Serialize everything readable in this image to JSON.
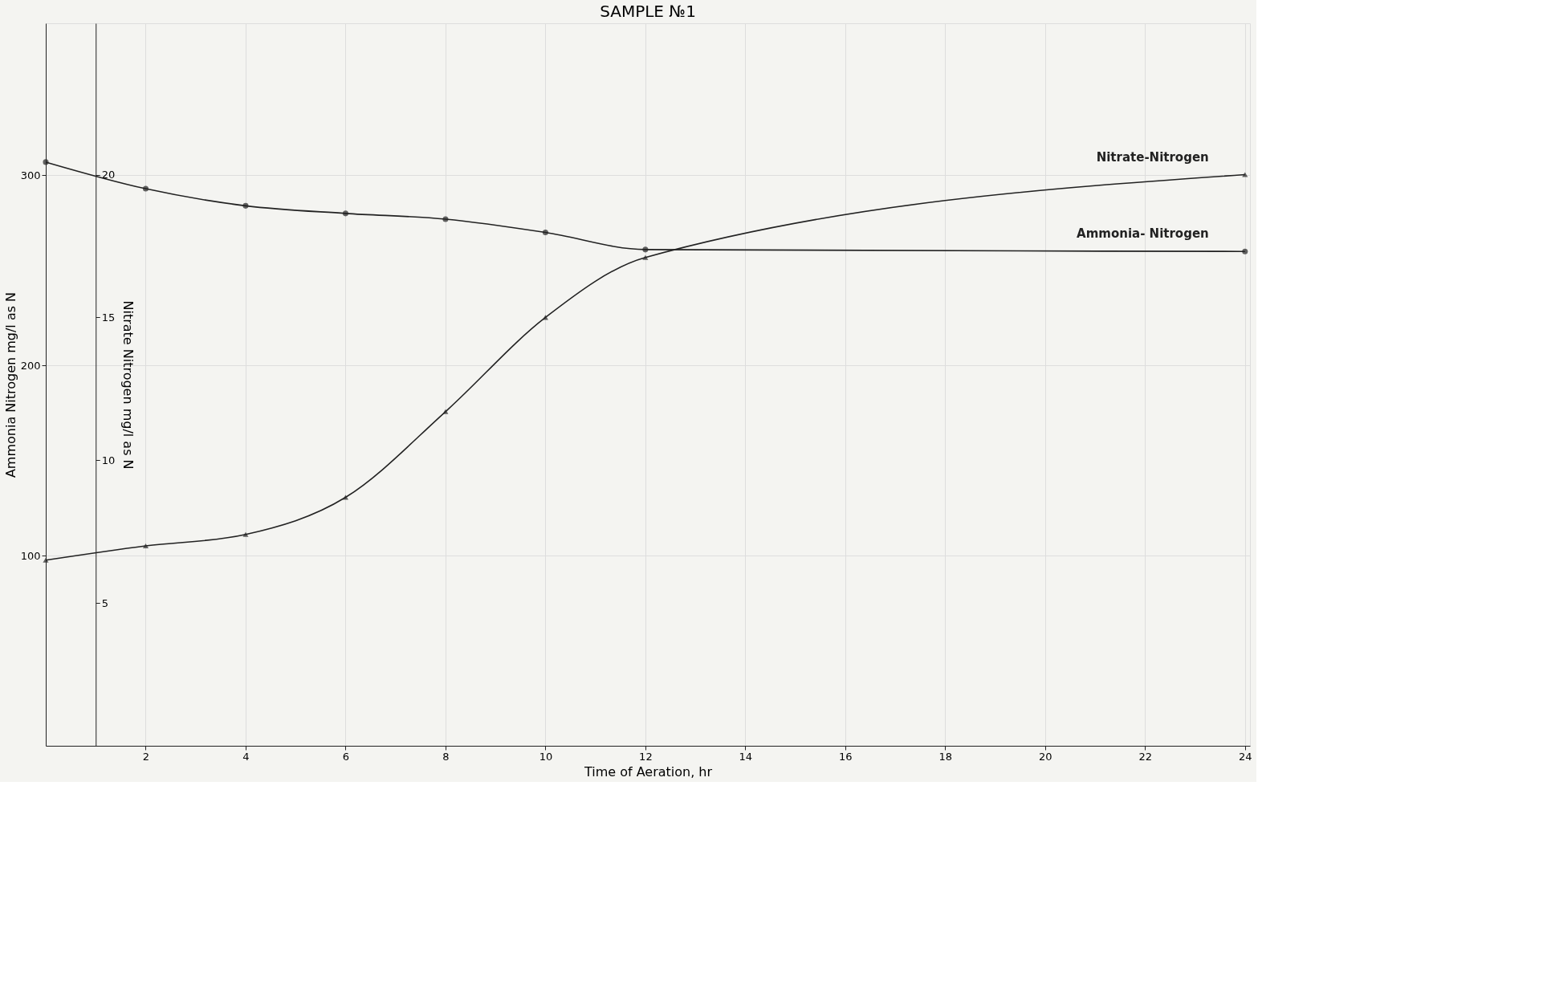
{
  "chart_data": {
    "type": "line",
    "title": "SAMPLE №1",
    "xlabel": "Time of Aeration,   hr",
    "ylabel": "Ammonia   Nitrogen   mg/l  as  N",
    "y2label": "Nitrate  Nitrogen  mg/l  as  N",
    "x": [
      0,
      2,
      4,
      6,
      8,
      10,
      12,
      24
    ],
    "series": [
      {
        "name": "Ammonia- Nitrogen",
        "color": "#222222",
        "marker": "circle",
        "values": [
          307,
          293,
          284,
          280,
          277,
          270,
          261,
          260
        ]
      },
      {
        "name": "Nitrate-Nitrogen",
        "color": "#222222",
        "marker": "triangle",
        "axis": "y2",
        "values": [
          6.5,
          7.0,
          7.4,
          8.7,
          11.7,
          15.0,
          17.1,
          20.0
        ]
      }
    ],
    "xlim": [
      0,
      24.1
    ],
    "xticks": [
      2,
      4,
      6,
      8,
      10,
      12,
      14,
      16,
      18,
      20,
      22,
      24
    ],
    "ylim": [
      0,
      380
    ],
    "yticks": [
      100,
      200,
      300
    ],
    "y2lim": [
      0,
      25.3
    ],
    "y2ticks": [
      5,
      10,
      15,
      20
    ],
    "grid": true,
    "legend": false,
    "line_style": "solid"
  }
}
